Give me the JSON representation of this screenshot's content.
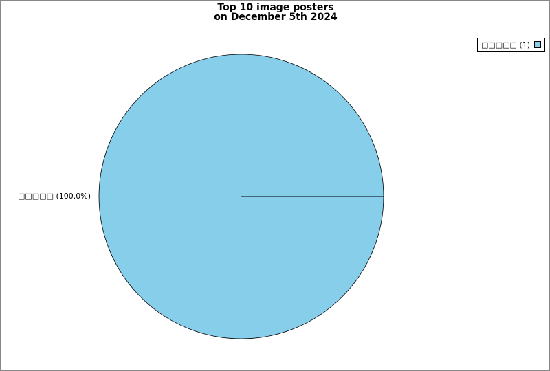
{
  "chart_data": {
    "type": "pie",
    "title": "Top 10 image posters",
    "subtitle": "on December 5th 2024",
    "slices": [
      {
        "label": "□□□□□",
        "value": 1,
        "percent_label": "(100.0%)",
        "legend_label": "□□□□□ (1)",
        "color": "#87ceeb"
      }
    ],
    "legend_placement": "top-right"
  }
}
